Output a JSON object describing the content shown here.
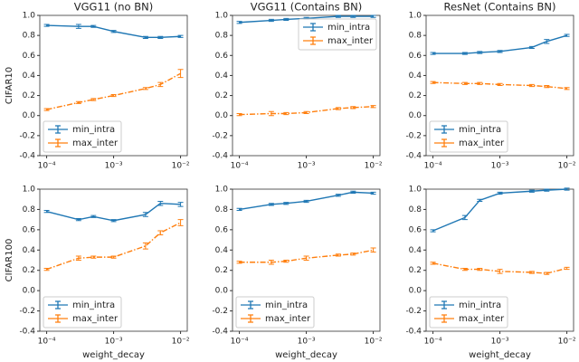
{
  "chart_data": [
    {
      "type": "line",
      "title": "VGG11 (no BN)",
      "ylabel": "CIFAR10",
      "x": [
        0.0001,
        0.0003,
        0.0005,
        0.001,
        0.003,
        0.005,
        0.01
      ],
      "series": [
        {
          "name": "min_intra",
          "color": "#1f77b4",
          "linestyle": "solid",
          "values": [
            0.9,
            0.89,
            0.89,
            0.84,
            0.78,
            0.78,
            0.79
          ],
          "errors": [
            0.01,
            0.02,
            0.01,
            0.01,
            0.01,
            0.01,
            0.01
          ]
        },
        {
          "name": "max_inter",
          "color": "#ff7f0e",
          "linestyle": "dashdot",
          "values": [
            0.06,
            0.13,
            0.16,
            0.2,
            0.27,
            0.31,
            0.42
          ],
          "errors": [
            0.01,
            0.01,
            0.01,
            0.01,
            0.01,
            0.02,
            0.04
          ]
        }
      ],
      "xlim": [
        7.9e-05,
        0.0126
      ],
      "xscale": "log",
      "ylim": [
        -0.4,
        1.0
      ],
      "xticks": [
        {
          "value": 0.0001,
          "label": "10⁻⁴"
        },
        {
          "value": 0.001,
          "label": "10⁻³"
        },
        {
          "value": 0.01,
          "label": "10⁻²"
        }
      ],
      "yticks": [
        -0.4,
        -0.2,
        {
          "value": 0,
          "label": "0.0"
        },
        0.2,
        0.4,
        0.6,
        0.8,
        {
          "value": 1,
          "label": "1.0"
        }
      ],
      "legend": "lower left"
    },
    {
      "type": "line",
      "title": "VGG11 (Contains BN)",
      "x": [
        0.0001,
        0.0003,
        0.0005,
        0.001,
        0.003,
        0.005,
        0.01
      ],
      "series": [
        {
          "name": "min_intra",
          "color": "#1f77b4",
          "linestyle": "solid",
          "values": [
            0.93,
            0.95,
            0.96,
            0.97,
            0.99,
            0.99,
            0.99
          ],
          "errors": [
            0.01,
            0.01,
            0.01,
            0.01,
            0.01,
            0.01,
            0.01
          ]
        },
        {
          "name": "max_inter",
          "color": "#ff7f0e",
          "linestyle": "dashdot",
          "values": [
            0.01,
            0.02,
            0.02,
            0.03,
            0.07,
            0.08,
            0.09
          ],
          "errors": [
            0.01,
            0.02,
            0.01,
            0.01,
            0.01,
            0.01,
            0.01
          ]
        }
      ],
      "xlim": [
        7.9e-05,
        0.0126
      ],
      "xscale": "log",
      "ylim": [
        -0.4,
        1.0
      ],
      "xticks": [
        {
          "value": 0.0001,
          "label": "10⁻⁴"
        },
        {
          "value": 0.001,
          "label": "10⁻³"
        },
        {
          "value": 0.01,
          "label": "10⁻²"
        }
      ],
      "yticks": [
        -0.4,
        -0.2,
        {
          "value": 0,
          "label": "0.0"
        },
        0.2,
        0.4,
        0.6,
        0.8,
        {
          "value": 1,
          "label": "1.0"
        }
      ],
      "legend": "upper right"
    },
    {
      "type": "line",
      "title": "ResNet (Contains BN)",
      "x": [
        0.0001,
        0.0003,
        0.0005,
        0.001,
        0.003,
        0.005,
        0.01
      ],
      "series": [
        {
          "name": "min_intra",
          "color": "#1f77b4",
          "linestyle": "solid",
          "values": [
            0.62,
            0.62,
            0.63,
            0.64,
            0.68,
            0.74,
            0.8
          ],
          "errors": [
            0.01,
            0.01,
            0.01,
            0.01,
            0.01,
            0.02,
            0.01
          ]
        },
        {
          "name": "max_inter",
          "color": "#ff7f0e",
          "linestyle": "dashdot",
          "values": [
            0.33,
            0.32,
            0.32,
            0.31,
            0.3,
            0.29,
            0.27
          ],
          "errors": [
            0.01,
            0.01,
            0.01,
            0.01,
            0.01,
            0.01,
            0.01
          ]
        }
      ],
      "xlim": [
        7.9e-05,
        0.0126
      ],
      "xscale": "log",
      "ylim": [
        -0.4,
        1.0
      ],
      "xticks": [
        {
          "value": 0.0001,
          "label": "10⁻⁴"
        },
        {
          "value": 0.001,
          "label": "10⁻³"
        },
        {
          "value": 0.01,
          "label": "10⁻²"
        }
      ],
      "yticks": [
        -0.4,
        -0.2,
        {
          "value": 0,
          "label": "0.0"
        },
        0.2,
        0.4,
        0.6,
        0.8,
        {
          "value": 1,
          "label": "1.0"
        }
      ],
      "legend": "lower left"
    },
    {
      "type": "line",
      "ylabel": "CIFAR100",
      "xlabel": "weight_decay",
      "x": [
        0.0001,
        0.0003,
        0.0005,
        0.001,
        0.003,
        0.005,
        0.01
      ],
      "series": [
        {
          "name": "min_intra",
          "color": "#1f77b4",
          "linestyle": "solid",
          "values": [
            0.78,
            0.7,
            0.73,
            0.69,
            0.75,
            0.86,
            0.85
          ],
          "errors": [
            0.01,
            0.01,
            0.01,
            0.01,
            0.02,
            0.02,
            0.02
          ]
        },
        {
          "name": "max_inter",
          "color": "#ff7f0e",
          "linestyle": "dashdot",
          "values": [
            0.21,
            0.32,
            0.33,
            0.33,
            0.44,
            0.57,
            0.67
          ],
          "errors": [
            0.01,
            0.02,
            0.01,
            0.01,
            0.03,
            0.02,
            0.03
          ]
        }
      ],
      "xlim": [
        7.9e-05,
        0.0126
      ],
      "xscale": "log",
      "ylim": [
        -0.4,
        1.0
      ],
      "xticks": [
        {
          "value": 0.0001,
          "label": "10⁻⁴"
        },
        {
          "value": 0.001,
          "label": "10⁻³"
        },
        {
          "value": 0.01,
          "label": "10⁻²"
        }
      ],
      "yticks": [
        -0.4,
        -0.2,
        {
          "value": 0,
          "label": "0.0"
        },
        0.2,
        0.4,
        0.6,
        0.8,
        {
          "value": 1,
          "label": "1.0"
        }
      ],
      "legend": "lower left"
    },
    {
      "type": "line",
      "xlabel": "weight_decay",
      "x": [
        0.0001,
        0.0003,
        0.0005,
        0.001,
        0.003,
        0.005,
        0.01
      ],
      "series": [
        {
          "name": "min_intra",
          "color": "#1f77b4",
          "linestyle": "solid",
          "values": [
            0.8,
            0.85,
            0.86,
            0.88,
            0.94,
            0.97,
            0.96
          ],
          "errors": [
            0.01,
            0.01,
            0.01,
            0.01,
            0.01,
            0.01,
            0.01
          ]
        },
        {
          "name": "max_inter",
          "color": "#ff7f0e",
          "linestyle": "dashdot",
          "values": [
            0.28,
            0.28,
            0.29,
            0.32,
            0.35,
            0.36,
            0.4
          ],
          "errors": [
            0.01,
            0.02,
            0.01,
            0.02,
            0.01,
            0.01,
            0.02
          ]
        }
      ],
      "xlim": [
        7.9e-05,
        0.0126
      ],
      "xscale": "log",
      "ylim": [
        -0.4,
        1.0
      ],
      "xticks": [
        {
          "value": 0.0001,
          "label": "10⁻⁴"
        },
        {
          "value": 0.001,
          "label": "10⁻³"
        },
        {
          "value": 0.01,
          "label": "10⁻²"
        }
      ],
      "yticks": [
        -0.4,
        -0.2,
        {
          "value": 0,
          "label": "0.0"
        },
        0.2,
        0.4,
        0.6,
        0.8,
        {
          "value": 1,
          "label": "1.0"
        }
      ],
      "legend": "lower left"
    },
    {
      "type": "line",
      "xlabel": "weight_decay",
      "x": [
        0.0001,
        0.0003,
        0.0005,
        0.001,
        0.003,
        0.005,
        0.01
      ],
      "series": [
        {
          "name": "min_intra",
          "color": "#1f77b4",
          "linestyle": "solid",
          "values": [
            0.59,
            0.72,
            0.89,
            0.96,
            0.98,
            0.99,
            1.0
          ],
          "errors": [
            0.01,
            0.02,
            0.01,
            0.01,
            0.01,
            0.01,
            0.01
          ]
        },
        {
          "name": "max_inter",
          "color": "#ff7f0e",
          "linestyle": "dashdot",
          "values": [
            0.27,
            0.21,
            0.21,
            0.19,
            0.18,
            0.17,
            0.22
          ],
          "errors": [
            0.01,
            0.01,
            0.01,
            0.02,
            0.01,
            0.01,
            0.01
          ]
        }
      ],
      "xlim": [
        7.9e-05,
        0.0126
      ],
      "xscale": "log",
      "ylim": [
        -0.4,
        1.0
      ],
      "xticks": [
        {
          "value": 0.0001,
          "label": "10⁻⁴"
        },
        {
          "value": 0.001,
          "label": "10⁻³"
        },
        {
          "value": 0.01,
          "label": "10⁻²"
        }
      ],
      "yticks": [
        -0.4,
        -0.2,
        {
          "value": 0,
          "label": "0.0"
        },
        0.2,
        0.4,
        0.6,
        0.8,
        {
          "value": 1,
          "label": "1.0"
        }
      ],
      "legend": "lower left"
    }
  ]
}
